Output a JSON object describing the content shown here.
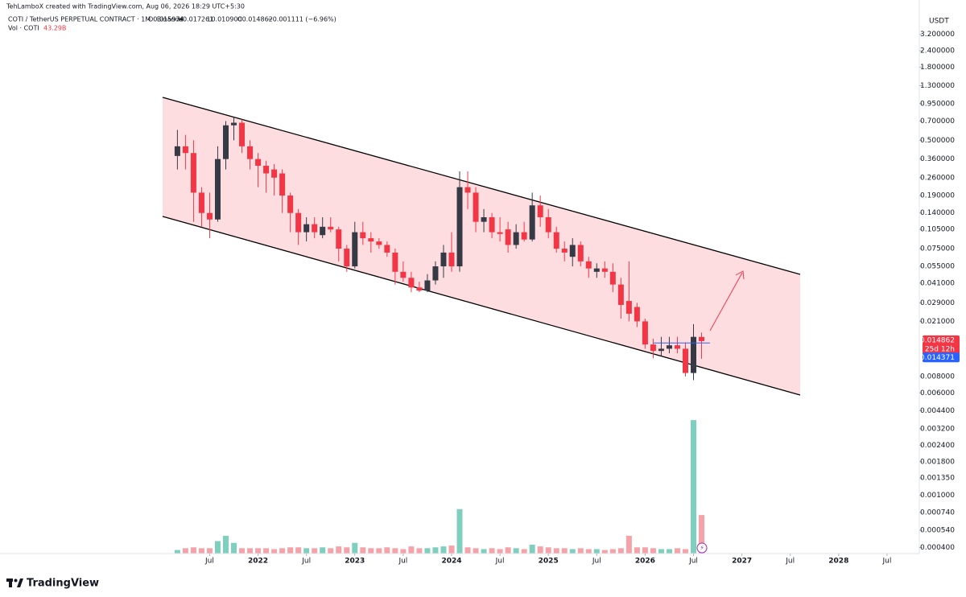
{
  "header": {
    "attribution": "TehLamboX created with TradingView.com, Aug 06, 2026 18:29 UTC+5:30",
    "symbol": "COTI / TetherUS PERPETUAL CONTRACT · 1M · Binance",
    "ohlc": [
      "O0.015974",
      "H0.017261",
      "L0.010900",
      "C0.014862"
    ],
    "change": "−0.001111 (−6.96%)",
    "volume_name": "Vol · COTI",
    "currency": "USDT"
  },
  "footer": {
    "brand": "TradingView"
  },
  "chart_data": {
    "type": "candlestick",
    "x": [
      "2021-03",
      "2021-04",
      "2021-05",
      "2021-06",
      "2021-07",
      "2021-08",
      "2021-09",
      "2021-10",
      "2021-11",
      "2021-12",
      "2022-01",
      "2022-02",
      "2022-03",
      "2022-04",
      "2022-05",
      "2022-06",
      "2022-07",
      "2022-08",
      "2022-09",
      "2022-10",
      "2022-11",
      "2022-12",
      "2023-01",
      "2023-02",
      "2023-03",
      "2023-04",
      "2023-05",
      "2023-06",
      "2023-07",
      "2023-08",
      "2023-09",
      "2023-10",
      "2023-11",
      "2023-12",
      "2024-01",
      "2024-02",
      "2024-03",
      "2024-04",
      "2024-05",
      "2024-06",
      "2024-07",
      "2024-08",
      "2024-09",
      "2024-10",
      "2024-11",
      "2024-12",
      "2025-01",
      "2025-02",
      "2025-03",
      "2025-04",
      "2025-05",
      "2025-06",
      "2025-07",
      "2025-08",
      "2025-09",
      "2025-10",
      "2025-11",
      "2025-12",
      "2026-01",
      "2026-02",
      "2026-03",
      "2026-04",
      "2026-05",
      "2026-06",
      "2026-07",
      "2026-08"
    ],
    "open": [
      0.38,
      0.45,
      0.4,
      0.2,
      0.14,
      0.125,
      0.36,
      0.65,
      0.68,
      0.45,
      0.36,
      0.32,
      0.3,
      0.28,
      0.19,
      0.14,
      0.1,
      0.115,
      0.095,
      0.11,
      0.105,
      0.075,
      0.055,
      0.1,
      0.09,
      0.085,
      0.08,
      0.07,
      0.05,
      0.045,
      0.038,
      0.036,
      0.043,
      0.055,
      0.07,
      0.055,
      0.22,
      0.2,
      0.12,
      0.13,
      0.1,
      0.105,
      0.08,
      0.1,
      0.088,
      0.16,
      0.13,
      0.1,
      0.075,
      0.065,
      0.08,
      0.06,
      0.05,
      0.053,
      0.05,
      0.04,
      0.03,
      0.027,
      0.021,
      0.014,
      0.0125,
      0.013,
      0.0138,
      0.013,
      0.0085,
      0.015974
    ],
    "high": [
      0.6,
      0.55,
      0.5,
      0.22,
      0.2,
      0.45,
      0.7,
      0.75,
      0.72,
      0.5,
      0.4,
      0.35,
      0.33,
      0.3,
      0.2,
      0.15,
      0.13,
      0.13,
      0.13,
      0.13,
      0.11,
      0.08,
      0.12,
      0.12,
      0.1,
      0.09,
      0.085,
      0.075,
      0.06,
      0.05,
      0.042,
      0.048,
      0.06,
      0.08,
      0.1,
      0.29,
      0.29,
      0.22,
      0.15,
      0.14,
      0.13,
      0.12,
      0.115,
      0.12,
      0.2,
      0.19,
      0.15,
      0.11,
      0.085,
      0.09,
      0.085,
      0.065,
      0.058,
      0.06,
      0.058,
      0.045,
      0.06,
      0.029,
      0.022,
      0.0155,
      0.016,
      0.016,
      0.016,
      0.0145,
      0.02,
      0.017261
    ],
    "low": [
      0.3,
      0.3,
      0.12,
      0.11,
      0.09,
      0.12,
      0.3,
      0.5,
      0.4,
      0.3,
      0.22,
      0.2,
      0.19,
      0.14,
      0.1,
      0.08,
      0.085,
      0.09,
      0.09,
      0.1,
      0.06,
      0.05,
      0.053,
      0.08,
      0.07,
      0.075,
      0.065,
      0.04,
      0.042,
      0.035,
      0.035,
      0.035,
      0.04,
      0.045,
      0.05,
      0.05,
      0.15,
      0.1,
      0.1,
      0.09,
      0.085,
      0.07,
      0.075,
      0.085,
      0.085,
      0.11,
      0.09,
      0.07,
      0.06,
      0.055,
      0.055,
      0.045,
      0.045,
      0.045,
      0.035,
      0.022,
      0.021,
      0.019,
      0.013,
      0.011,
      0.0115,
      0.012,
      0.012,
      0.008,
      0.0075,
      0.0109
    ],
    "close": [
      0.45,
      0.4,
      0.2,
      0.14,
      0.125,
      0.36,
      0.65,
      0.68,
      0.45,
      0.36,
      0.32,
      0.28,
      0.26,
      0.19,
      0.14,
      0.1,
      0.115,
      0.1,
      0.11,
      0.105,
      0.075,
      0.055,
      0.1,
      0.09,
      0.085,
      0.08,
      0.07,
      0.05,
      0.045,
      0.038,
      0.036,
      0.043,
      0.055,
      0.07,
      0.055,
      0.22,
      0.2,
      0.12,
      0.13,
      0.1,
      0.097,
      0.08,
      0.1,
      0.088,
      0.16,
      0.13,
      0.1,
      0.075,
      0.07,
      0.08,
      0.06,
      0.053,
      0.053,
      0.05,
      0.04,
      0.028,
      0.024,
      0.021,
      0.014,
      0.0125,
      0.013,
      0.0138,
      0.013,
      0.0085,
      0.016,
      0.014862
    ],
    "volume": [
      4,
      6,
      7,
      6,
      6,
      14,
      20,
      12,
      6,
      6,
      6,
      6,
      5,
      6,
      7,
      7,
      6,
      6,
      7,
      6,
      8,
      7,
      12,
      7,
      6,
      6,
      7,
      6,
      5,
      8,
      6,
      6,
      7,
      8,
      9,
      50,
      7,
      6,
      5,
      6,
      5,
      7,
      6,
      5,
      10,
      8,
      7,
      6,
      6,
      5,
      6,
      5,
      5,
      4,
      5,
      6,
      20,
      7,
      7,
      6,
      5,
      5,
      6,
      5,
      150,
      43.29
    ],
    "volume_label": "43.29B",
    "volume_ylim": [
      0,
      170
    ],
    "up_color": "#363a45",
    "down_color": "#f23645",
    "volume_up_color": "#7fcfbf",
    "volume_down_color": "#f5a3a9",
    "log_scale": true,
    "xlim": [
      "2019-05",
      "2028-11"
    ],
    "xticks": [
      {
        "value": "2021-07",
        "label": "Jul"
      },
      {
        "value": "2022-01",
        "label": "2022"
      },
      {
        "value": "2022-07",
        "label": "Jul"
      },
      {
        "value": "2023-01",
        "label": "2023"
      },
      {
        "value": "2023-07",
        "label": "Jul"
      },
      {
        "value": "2024-01",
        "label": "2024"
      },
      {
        "value": "2024-07",
        "label": "Jul"
      },
      {
        "value": "2025-01",
        "label": "2025"
      },
      {
        "value": "2025-07",
        "label": "Jul"
      },
      {
        "value": "2026-01",
        "label": "2026"
      },
      {
        "value": "2026-07",
        "label": "Jul"
      },
      {
        "value": "2027-01",
        "label": "2027"
      },
      {
        "value": "2027-07",
        "label": "Jul"
      },
      {
        "value": "2028-01",
        "label": "2028"
      },
      {
        "value": "2028-07",
        "label": "Jul"
      }
    ],
    "ylim": [
      0.00036,
      4.4
    ],
    "yticks": [
      {
        "value": 3.2,
        "label": "3.200000"
      },
      {
        "value": 2.4,
        "label": "2.400000"
      },
      {
        "value": 1.8,
        "label": "1.800000"
      },
      {
        "value": 1.3,
        "label": "1.300000"
      },
      {
        "value": 0.95,
        "label": "0.950000"
      },
      {
        "value": 0.7,
        "label": "0.700000"
      },
      {
        "value": 0.5,
        "label": "0.500000"
      },
      {
        "value": 0.36,
        "label": "0.360000"
      },
      {
        "value": 0.26,
        "label": "0.260000"
      },
      {
        "value": 0.19,
        "label": "0.190000"
      },
      {
        "value": 0.14,
        "label": "0.140000"
      },
      {
        "value": 0.105,
        "label": "0.105000"
      },
      {
        "value": 0.075,
        "label": "0.075000"
      },
      {
        "value": 0.055,
        "label": "0.055000"
      },
      {
        "value": 0.041,
        "label": "0.041000"
      },
      {
        "value": 0.029,
        "label": "0.029000"
      },
      {
        "value": 0.021,
        "label": "0.021000"
      },
      {
        "value": 0.008,
        "label": "0.008000"
      },
      {
        "value": 0.006,
        "label": "0.006000"
      },
      {
        "value": 0.0044,
        "label": "0.004400"
      },
      {
        "value": 0.0032,
        "label": "0.003200"
      },
      {
        "value": 0.0024,
        "label": "0.002400"
      },
      {
        "value": 0.0018,
        "label": "0.001800"
      },
      {
        "value": 0.00135,
        "label": "0.001350"
      },
      {
        "value": 0.001,
        "label": "0.001000"
      },
      {
        "value": 0.00074,
        "label": "0.000740"
      },
      {
        "value": 0.00054,
        "label": "0.000540"
      },
      {
        "value": 0.0004,
        "label": "0.000400"
      }
    ],
    "price_labels": [
      {
        "value": 0.014862,
        "label": "0.014862",
        "color": "#f23645"
      },
      {
        "value": 0.014371,
        "label": "0.014371",
        "color": "#2962ff"
      }
    ],
    "countdown": "25d 12h",
    "grid": false
  }
}
